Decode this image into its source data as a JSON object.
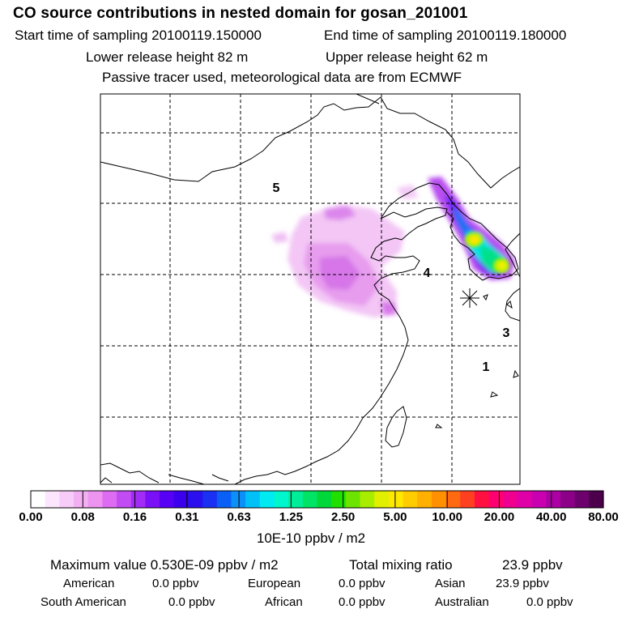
{
  "header": {
    "title": "CO  source contributions in nested domain for gosan_201001",
    "start_label": "Start time of sampling 20100119.150000",
    "end_label": "End time of sampling 20100119.180000",
    "lower_label": "Lower release height   82 m",
    "upper_label": "Upper release height   62 m",
    "tracer_note": "Passive tracer used, meteorological data are from ECMWF"
  },
  "map": {
    "region_labels": [
      "5",
      "4",
      "3",
      "1"
    ],
    "receptor_marker": "asterisk-icon",
    "land_outline_color": "#000000",
    "grid_line_color": "#000000"
  },
  "colorbar": {
    "colors": [
      "#ffffff",
      "#fde6fd",
      "#f8ccf8",
      "#f2b0f2",
      "#ec94f0",
      "#de6cf2",
      "#c24cf4",
      "#a22cf6",
      "#7a10f6",
      "#5600f4",
      "#3a00ee",
      "#2a10ee",
      "#1a30f2",
      "#0a60f6",
      "#0a90f8",
      "#00c0f8",
      "#00eaf2",
      "#00f6cc",
      "#00ee9a",
      "#00e466",
      "#00d83a",
      "#20e000",
      "#6ce400",
      "#a8ec00",
      "#e0f000",
      "#ffe800",
      "#ffcc00",
      "#ffb000",
      "#ff9000",
      "#ff6a10",
      "#ff4020",
      "#ff1040",
      "#ff0070",
      "#f00090",
      "#e000a8",
      "#c800b0",
      "#ac00a4",
      "#8c0088",
      "#6c006c",
      "#4c004c"
    ],
    "tick_labels": [
      "0.00",
      "0.08",
      "0.16",
      "0.31",
      "0.63",
      "1.25",
      "2.50",
      "5.00",
      "10.00",
      "20.00",
      "40.00",
      "80.00"
    ],
    "unit": "10E-10 ppbv / m2"
  },
  "stats": {
    "max_label": "Maximum value  0.530E-09 ppbv / m2",
    "total_label": "Total mixing ratio",
    "total_value": "23.9 ppbv",
    "rows": [
      [
        {
          "label": "American",
          "value": "0.0 ppbv"
        },
        {
          "label": "European",
          "value": "0.0 ppbv"
        },
        {
          "label": "Asian",
          "value": "23.9 ppbv"
        }
      ],
      [
        {
          "label": "South American",
          "value": "0.0 ppbv"
        },
        {
          "label": "African",
          "value": "0.0 ppbv"
        },
        {
          "label": "Australian",
          "value": "0.0 ppbv"
        }
      ]
    ]
  }
}
